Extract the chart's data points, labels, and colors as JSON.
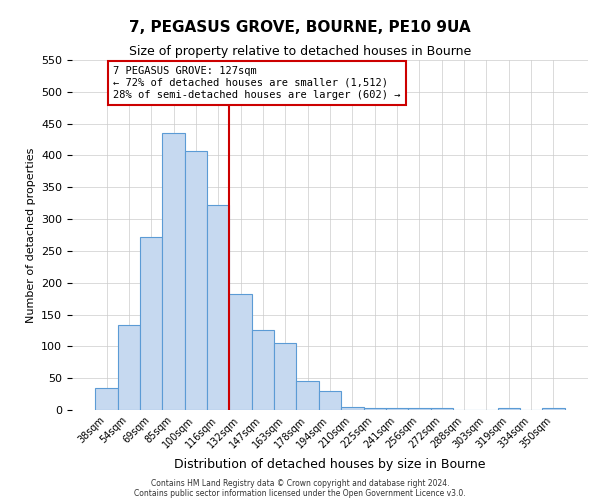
{
  "title": "7, PEGASUS GROVE, BOURNE, PE10 9UA",
  "subtitle": "Size of property relative to detached houses in Bourne",
  "xlabel": "Distribution of detached houses by size in Bourne",
  "ylabel": "Number of detached properties",
  "bar_labels": [
    "38sqm",
    "54sqm",
    "69sqm",
    "85sqm",
    "100sqm",
    "116sqm",
    "132sqm",
    "147sqm",
    "163sqm",
    "178sqm",
    "194sqm",
    "210sqm",
    "225sqm",
    "241sqm",
    "256sqm",
    "272sqm",
    "288sqm",
    "303sqm",
    "319sqm",
    "334sqm",
    "350sqm"
  ],
  "bar_heights": [
    35,
    133,
    272,
    435,
    407,
    322,
    183,
    126,
    105,
    46,
    30,
    5,
    3,
    3,
    3,
    3,
    0,
    0,
    3,
    0,
    3
  ],
  "bar_color": "#c6d9f0",
  "bar_edge_color": "#5b9bd5",
  "vline_color": "#cc0000",
  "annotation_line1": "7 PEGASUS GROVE: 127sqm",
  "annotation_line2": "← 72% of detached houses are smaller (1,512)",
  "annotation_line3": "28% of semi-detached houses are larger (602) →",
  "annotation_box_edge_color": "#cc0000",
  "ylim": [
    0,
    550
  ],
  "yticks": [
    0,
    50,
    100,
    150,
    200,
    250,
    300,
    350,
    400,
    450,
    500,
    550
  ],
  "grid_color": "#cccccc",
  "footer_line1": "Contains HM Land Registry data © Crown copyright and database right 2024.",
  "footer_line2": "Contains public sector information licensed under the Open Government Licence v3.0."
}
